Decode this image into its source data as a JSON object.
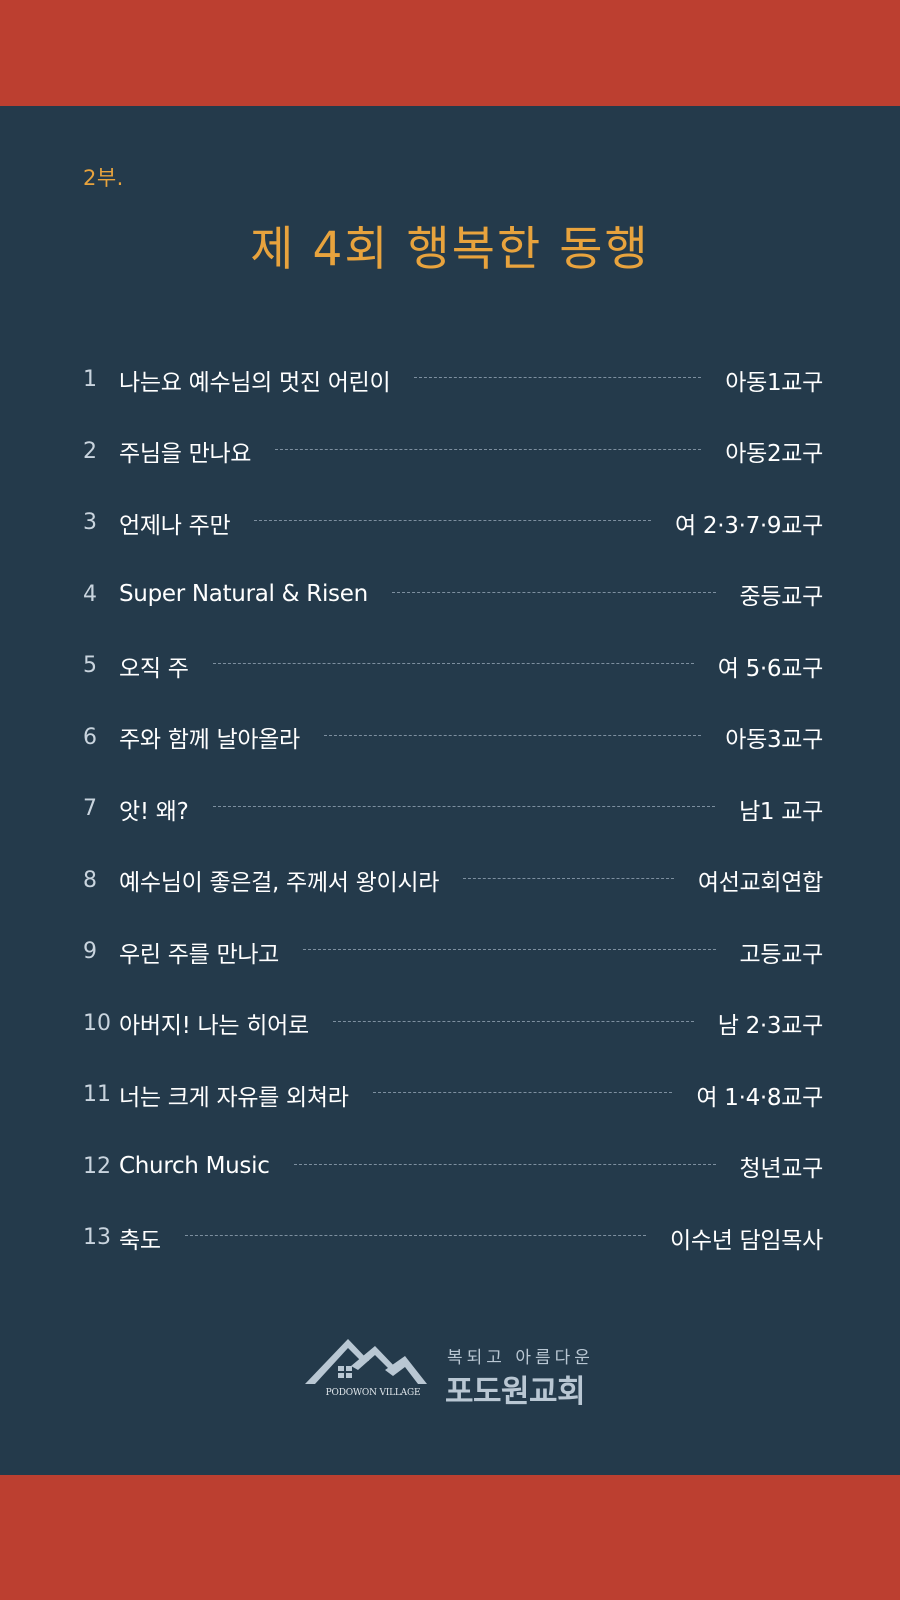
{
  "part_label": "2부.",
  "title": "제 4회 행복한 동행",
  "program": [
    {
      "num": "1",
      "song": "나는요 예수님의 멋진 어린이",
      "performer": "아동1교구"
    },
    {
      "num": "2",
      "song": "주님을 만나요",
      "performer": "아동2교구"
    },
    {
      "num": "3",
      "song": "언제나 주만",
      "performer": "여 2·3·7·9교구"
    },
    {
      "num": "4",
      "song": "Super Natural & Risen",
      "performer": "중등교구"
    },
    {
      "num": "5",
      "song": "오직 주",
      "performer": "여 5·6교구"
    },
    {
      "num": "6",
      "song": "주와 함께 날아올라",
      "performer": "아동3교구"
    },
    {
      "num": "7",
      "song": "앗! 왜?",
      "performer": "남1 교구"
    },
    {
      "num": "8",
      "song": "예수님이 좋은걸, 주께서 왕이시라",
      "performer": "여선교회연합"
    },
    {
      "num": "9",
      "song": "우린 주를 만나고",
      "performer": "고등교구"
    },
    {
      "num": "10",
      "song": "아버지! 나는 히어로",
      "performer": "남 2·3교구"
    },
    {
      "num": "11",
      "song": "너는 크게 자유를 외쳐라",
      "performer": "여 1·4·8교구"
    },
    {
      "num": "12",
      "song": "Church Music",
      "performer": "청년교구"
    },
    {
      "num": "13",
      "song": "축도",
      "performer": "이수년 담임목사"
    }
  ],
  "logo": {
    "emblem_text": "PODOWON VILLAGE",
    "slogan": "복되고 아름다운",
    "church_name": "포도원교회"
  },
  "colors": {
    "background": "#243a4b",
    "band": "#bc3f30",
    "accent": "#e8a33d",
    "text": "#ffffff",
    "logo": "#b9c7d3"
  }
}
